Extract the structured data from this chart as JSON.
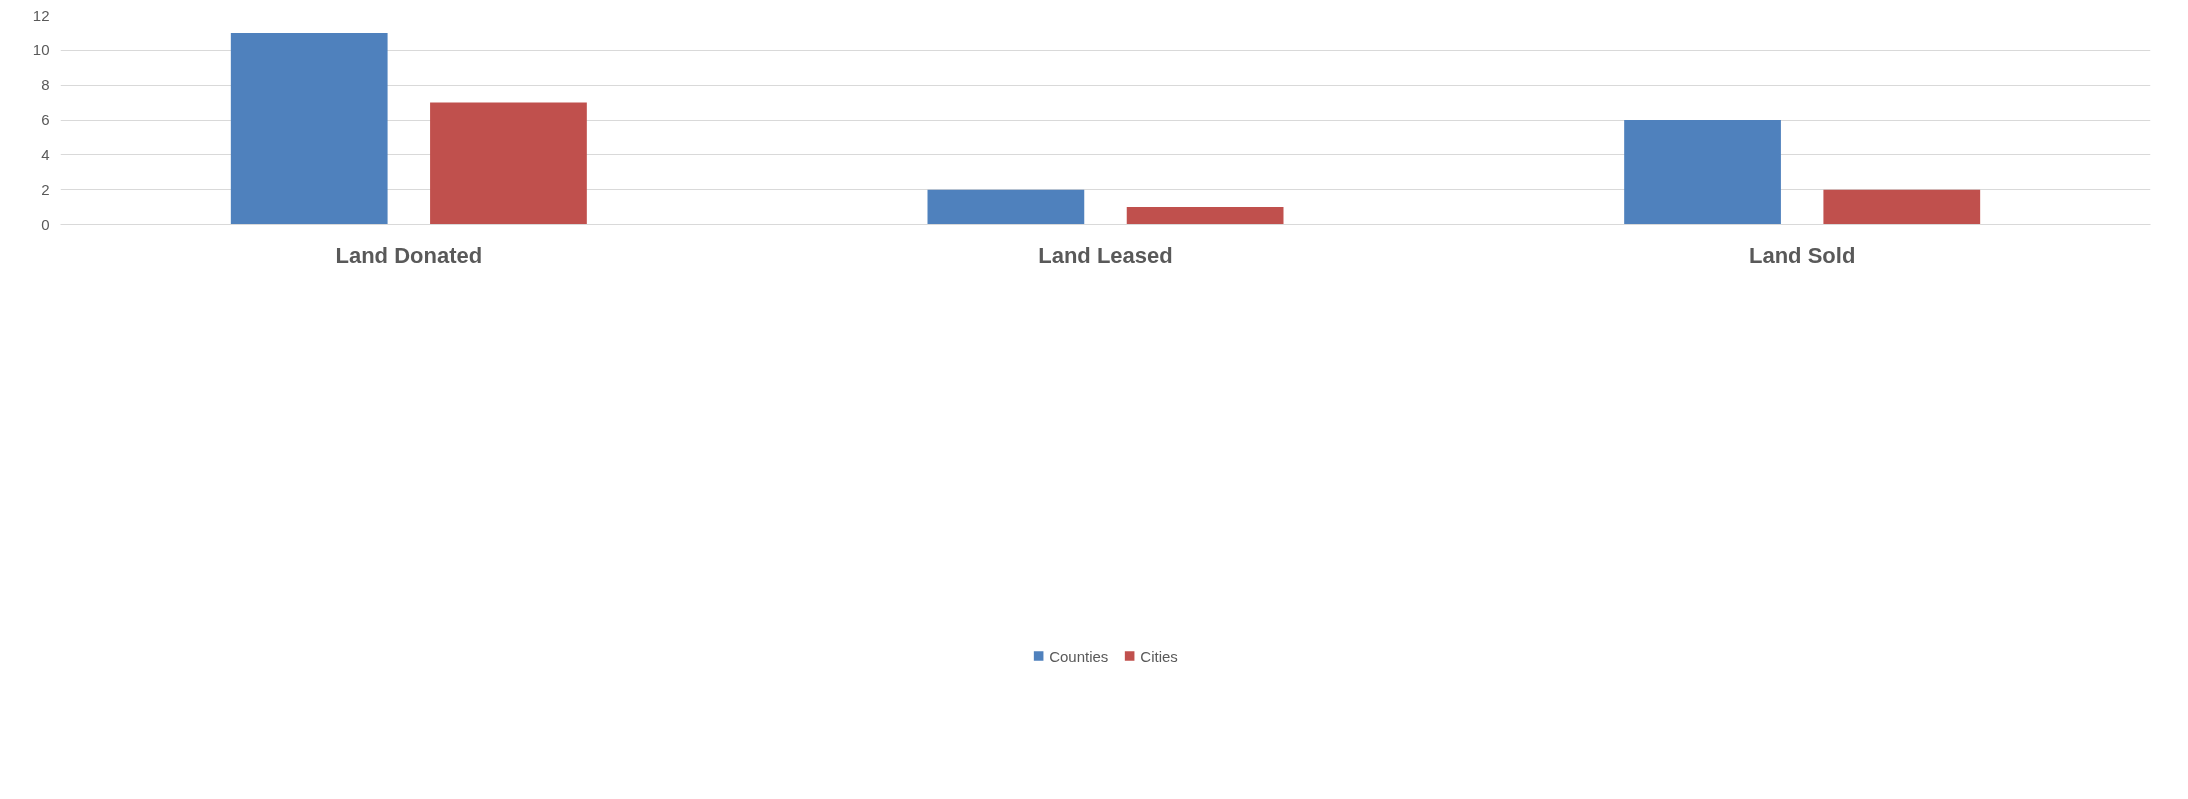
{
  "chart_data": {
    "type": "bar",
    "categories": [
      "Land Donated",
      "Land Leased",
      "Land Sold"
    ],
    "series": [
      {
        "name": "Counties",
        "color": "#4f81bd",
        "values": [
          11,
          2,
          6
        ]
      },
      {
        "name": "Cities",
        "color": "#c0504d",
        "values": [
          7,
          1,
          2
        ]
      }
    ],
    "ylim": [
      0,
      12
    ],
    "yticks": [
      0,
      2,
      4,
      6,
      8,
      10,
      12
    ],
    "grid": "y",
    "legend": "bottom"
  }
}
